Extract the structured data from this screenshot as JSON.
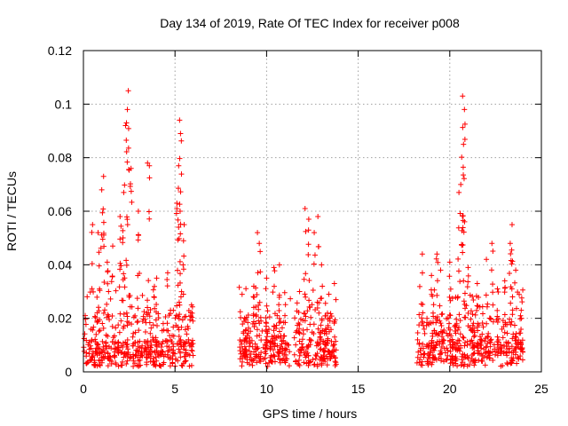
{
  "chart_data": {
    "type": "scatter",
    "title": "Day 134 of 2019, Rate Of TEC Index for receiver p008",
    "xlabel": "GPS time / hours",
    "ylabel": "ROTI / TECUs",
    "xlim": [
      0,
      25
    ],
    "ylim": [
      0,
      0.12
    ],
    "xticks": [
      0,
      5,
      10,
      15,
      20,
      25
    ],
    "xtick_labels": [
      "0",
      "5",
      "10",
      "15",
      "20",
      "25"
    ],
    "yticks": [
      0,
      0.02,
      0.04,
      0.06,
      0.08,
      0.1,
      0.12
    ],
    "ytick_labels": [
      "0",
      "0.02",
      "0.04",
      "0.06",
      "0.08",
      "0.1",
      "0.12"
    ],
    "grid": true,
    "marker": "+",
    "series": [
      {
        "name": "ROTI",
        "color": "#ff0000",
        "segments": [
          {
            "t_start": 0.0,
            "t_end": 6.0
          },
          {
            "t_start": 8.5,
            "t_end": 11.3
          },
          {
            "t_start": 11.5,
            "t_end": 13.8
          },
          {
            "t_start": 18.2,
            "t_end": 24.0
          }
        ],
        "peaks": [
          {
            "x": 0.1,
            "y": 0.021
          },
          {
            "x": 0.5,
            "y": 0.055
          },
          {
            "x": 0.8,
            "y": 0.052
          },
          {
            "x": 1.0,
            "y": 0.068
          },
          {
            "x": 1.1,
            "y": 0.073
          },
          {
            "x": 1.3,
            "y": 0.041
          },
          {
            "x": 1.6,
            "y": 0.047
          },
          {
            "x": 2.0,
            "y": 0.058
          },
          {
            "x": 2.2,
            "y": 0.067
          },
          {
            "x": 2.3,
            "y": 0.092
          },
          {
            "x": 2.4,
            "y": 0.098
          },
          {
            "x": 2.45,
            "y": 0.105
          },
          {
            "x": 2.6,
            "y": 0.076
          },
          {
            "x": 3.0,
            "y": 0.06
          },
          {
            "x": 3.5,
            "y": 0.078
          },
          {
            "x": 3.6,
            "y": 0.077
          },
          {
            "x": 4.0,
            "y": 0.035
          },
          {
            "x": 4.6,
            "y": 0.037
          },
          {
            "x": 5.1,
            "y": 0.063
          },
          {
            "x": 5.2,
            "y": 0.077
          },
          {
            "x": 5.25,
            "y": 0.094
          },
          {
            "x": 5.3,
            "y": 0.089
          },
          {
            "x": 5.5,
            "y": 0.055
          },
          {
            "x": 5.9,
            "y": 0.025
          },
          {
            "x": 8.8,
            "y": 0.02
          },
          {
            "x": 9.3,
            "y": 0.032
          },
          {
            "x": 9.5,
            "y": 0.052
          },
          {
            "x": 9.6,
            "y": 0.048
          },
          {
            "x": 10.0,
            "y": 0.035
          },
          {
            "x": 10.4,
            "y": 0.039
          },
          {
            "x": 10.7,
            "y": 0.04
          },
          {
            "x": 11.0,
            "y": 0.021
          },
          {
            "x": 11.8,
            "y": 0.03
          },
          {
            "x": 12.1,
            "y": 0.061
          },
          {
            "x": 12.3,
            "y": 0.057
          },
          {
            "x": 12.6,
            "y": 0.052
          },
          {
            "x": 12.8,
            "y": 0.058
          },
          {
            "x": 13.0,
            "y": 0.04
          },
          {
            "x": 13.4,
            "y": 0.029
          },
          {
            "x": 13.7,
            "y": 0.033
          },
          {
            "x": 18.5,
            "y": 0.044
          },
          {
            "x": 19.0,
            "y": 0.036
          },
          {
            "x": 19.3,
            "y": 0.044
          },
          {
            "x": 19.5,
            "y": 0.038
          },
          {
            "x": 20.0,
            "y": 0.041
          },
          {
            "x": 20.5,
            "y": 0.067
          },
          {
            "x": 20.6,
            "y": 0.07
          },
          {
            "x": 20.7,
            "y": 0.103
          },
          {
            "x": 20.75,
            "y": 0.085
          },
          {
            "x": 20.8,
            "y": 0.098
          },
          {
            "x": 21.0,
            "y": 0.039
          },
          {
            "x": 21.5,
            "y": 0.033
          },
          {
            "x": 22.0,
            "y": 0.042
          },
          {
            "x": 22.3,
            "y": 0.048
          },
          {
            "x": 22.6,
            "y": 0.031
          },
          {
            "x": 23.0,
            "y": 0.034
          },
          {
            "x": 23.3,
            "y": 0.048
          },
          {
            "x": 23.4,
            "y": 0.055
          },
          {
            "x": 23.6,
            "y": 0.038
          },
          {
            "x": 23.9,
            "y": 0.023
          }
        ]
      }
    ]
  }
}
